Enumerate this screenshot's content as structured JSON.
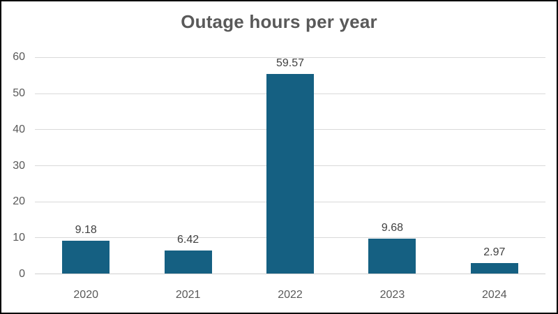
{
  "chart_data": {
    "type": "bar",
    "title": "Outage hours per year",
    "categories": [
      "2020",
      "2021",
      "2022",
      "2023",
      "2024"
    ],
    "values": [
      9.18,
      6.42,
      59.57,
      9.68,
      2.97
    ],
    "value_labels": [
      "9.18",
      "6.42",
      "59.57",
      "9.68",
      "2.97"
    ],
    "xlabel": "",
    "ylabel": "",
    "ylim": [
      0,
      60
    ],
    "yticks": [
      0,
      10,
      20,
      30,
      40,
      50,
      60
    ],
    "grid": true,
    "legend_position": "none",
    "colors": {
      "bar": "#156082",
      "gridline": "#d9d9d9",
      "axis_text": "#595959",
      "title_text": "#595959",
      "label_text": "#404040",
      "frame_border": "#000000",
      "background": "#ffffff"
    }
  }
}
